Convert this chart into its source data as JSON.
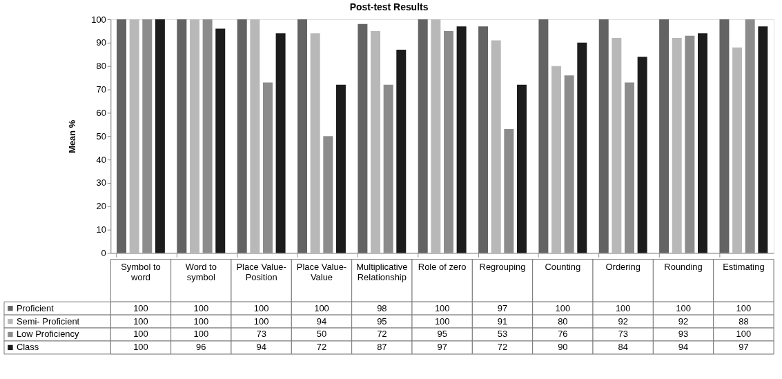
{
  "chart_data": {
    "type": "bar",
    "title": "Post-test Results",
    "ylabel": "Mean %",
    "categories": [
      "Symbol to word",
      "Word to symbol",
      "Place Value-Position",
      "Place Value-Value",
      "Multiplicative Relationship",
      "Role of zero",
      "Regrouping",
      "Counting",
      "Ordering",
      "Rounding",
      "Estimating"
    ],
    "series": [
      {
        "name": "Proficient",
        "color": "#636363",
        "values": [
          100,
          100,
          100,
          100,
          98,
          100,
          97,
          100,
          100,
          100,
          100
        ]
      },
      {
        "name": "Semi- Proficient",
        "color": "#b8b8b8",
        "values": [
          100,
          100,
          100,
          94,
          95,
          100,
          91,
          80,
          92,
          92,
          88
        ]
      },
      {
        "name": "Low Proficiency",
        "color": "#8c8c8c",
        "values": [
          100,
          100,
          73,
          50,
          72,
          95,
          53,
          76,
          73,
          93,
          100
        ]
      },
      {
        "name": "Class",
        "color": "#1c1c1c",
        "values": [
          100,
          96,
          94,
          72,
          87,
          97,
          72,
          90,
          84,
          94,
          97
        ]
      }
    ],
    "ylim": [
      0,
      100
    ],
    "yticks": [
      0,
      10,
      20,
      30,
      40,
      50,
      60,
      70,
      80,
      90,
      100
    ],
    "data_labels": true,
    "legend": "bottom"
  }
}
